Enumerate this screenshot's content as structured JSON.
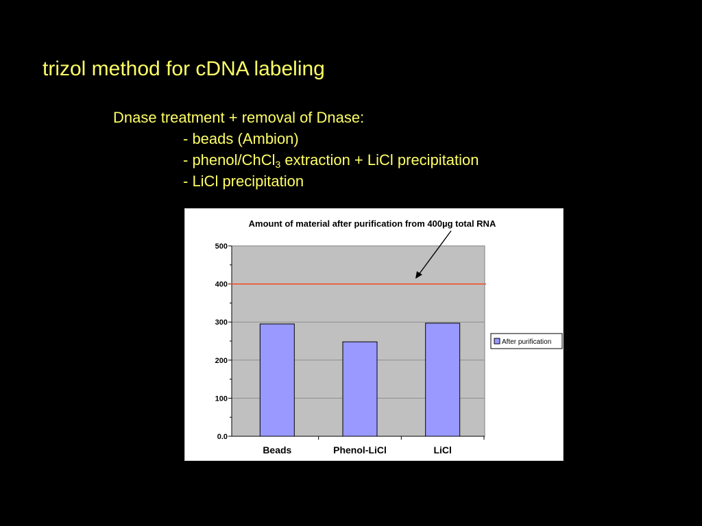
{
  "slide": {
    "title": "trizol method for cDNA labeling",
    "lines": [
      {
        "pre": "Dnase treatment + removal of Dnase:",
        "sub": "",
        "post": "",
        "indent": false
      },
      {
        "pre": "- beads (Ambion)",
        "sub": "",
        "post": "",
        "indent": true
      },
      {
        "pre": "- phenol/ChCl",
        "sub": "3",
        "post": " extraction + LiCl precipitation",
        "indent": true
      },
      {
        "pre": "- LiCl precipitation",
        "sub": "",
        "post": "",
        "indent": true
      }
    ]
  },
  "chart_data": {
    "type": "bar",
    "title": "Amount of material after purification from 400µg total RNA",
    "categories": [
      "Beads",
      "Phenol-LiCl",
      "LiCl"
    ],
    "series": [
      {
        "name": "After purification",
        "values": [
          295,
          248,
          297
        ]
      }
    ],
    "ylim": [
      0,
      500
    ],
    "yticks": [
      "0.0",
      "100",
      "200",
      "300",
      "400",
      "500"
    ],
    "reference_line": 400,
    "legend_position": "right",
    "grid": true,
    "colors": {
      "bar": "#9999ff",
      "bar_border": "#000000",
      "plot_bg": "#c0c0c0",
      "reference_line": "#ff3300",
      "text": "#000000",
      "slide_text": "#ffff66"
    }
  }
}
